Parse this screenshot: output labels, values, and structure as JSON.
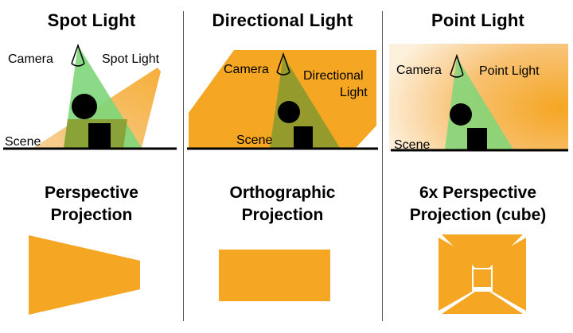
{
  "columns": [
    {
      "title": "Spot Light",
      "labels": {
        "camera": "Camera",
        "light": "Spot Light",
        "scene": "Scene"
      },
      "projection_line1": "Perspective",
      "projection_line2": "Projection"
    },
    {
      "title": "Directional Light",
      "labels": {
        "camera": "Camera",
        "light_line1": "Directional",
        "light_line2": "Light",
        "scene": "Scene"
      },
      "projection_line1": "Orthographic",
      "projection_line2": "Projection"
    },
    {
      "title": "Point Light",
      "labels": {
        "camera": "Camera",
        "light": "Point Light",
        "scene": "Scene"
      },
      "projection_line1": "6x Perspective",
      "projection_line2": "Projection (cube)"
    }
  ],
  "colors": {
    "light": "#F5A623",
    "camera_frustum": "#7ED67A",
    "overlap": "#8A9A2E",
    "ground": "#000000",
    "divider": "#555555"
  }
}
